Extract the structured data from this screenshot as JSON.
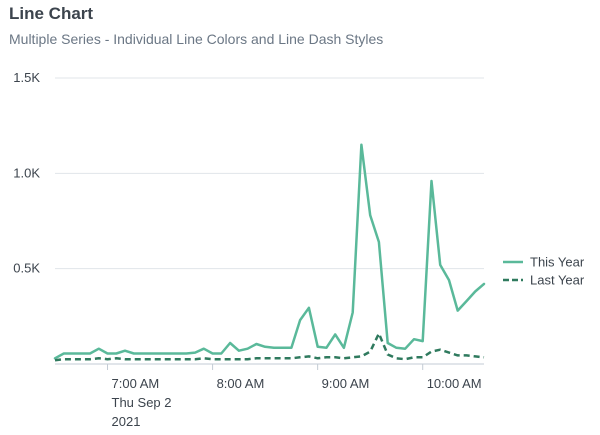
{
  "header": {
    "title": "Line Chart",
    "subtitle": "Multiple Series - Individual Line Colors and Line Dash Styles"
  },
  "chart_data": {
    "type": "line",
    "title": "Line Chart",
    "subtitle": "Multiple Series - Individual Line Colors and Line Dash Styles",
    "xlabel": "",
    "ylabel": "",
    "ylim": [
      0,
      1500
    ],
    "xlim": [
      "06:30",
      "10:35"
    ],
    "grid": {
      "y": true,
      "x": false
    },
    "legend_position": "right",
    "y_ticks": [
      {
        "value": 500,
        "label": "0.5K"
      },
      {
        "value": 1000,
        "label": "1.0K"
      },
      {
        "value": 1500,
        "label": "1.5K"
      }
    ],
    "x_ticks": [
      {
        "value": "07:00",
        "label": "7:00 AM",
        "sublabels": [
          "Thu Sep 2",
          "2021"
        ]
      },
      {
        "value": "08:00",
        "label": "8:00 AM",
        "sublabels": []
      },
      {
        "value": "09:00",
        "label": "9:00 AM",
        "sublabels": []
      },
      {
        "value": "10:00",
        "label": "10:00 AM",
        "sublabels": []
      }
    ],
    "x": [
      "06:30",
      "06:35",
      "06:40",
      "06:45",
      "06:50",
      "06:55",
      "07:00",
      "07:05",
      "07:10",
      "07:15",
      "07:20",
      "07:25",
      "07:30",
      "07:35",
      "07:40",
      "07:45",
      "07:50",
      "07:55",
      "08:00",
      "08:05",
      "08:10",
      "08:15",
      "08:20",
      "08:25",
      "08:30",
      "08:35",
      "08:40",
      "08:45",
      "08:50",
      "08:55",
      "09:00",
      "09:05",
      "09:10",
      "09:15",
      "09:20",
      "09:25",
      "09:30",
      "09:35",
      "09:40",
      "09:45",
      "09:50",
      "09:55",
      "10:00",
      "10:05",
      "10:10",
      "10:15",
      "10:20",
      "10:25",
      "10:30",
      "10:35"
    ],
    "series": [
      {
        "name": "This Year",
        "color": "#5ab99a",
        "dash": "solid",
        "values": [
          30,
          55,
          55,
          55,
          55,
          80,
          55,
          55,
          70,
          55,
          55,
          55,
          55,
          55,
          55,
          55,
          60,
          80,
          55,
          55,
          110,
          70,
          80,
          105,
          90,
          85,
          85,
          85,
          230,
          295,
          90,
          85,
          155,
          85,
          270,
          1150,
          780,
          640,
          110,
          85,
          80,
          130,
          120,
          960,
          520,
          440,
          280,
          330,
          380,
          420
        ]
      },
      {
        "name": "Last Year",
        "color": "#2f7a5e",
        "dash": "dashed",
        "values": [
          20,
          25,
          25,
          25,
          25,
          30,
          25,
          30,
          25,
          25,
          25,
          25,
          25,
          25,
          25,
          25,
          25,
          30,
          25,
          25,
          25,
          25,
          25,
          30,
          30,
          30,
          30,
          30,
          35,
          40,
          30,
          35,
          35,
          30,
          35,
          40,
          65,
          160,
          50,
          30,
          25,
          35,
          35,
          65,
          75,
          60,
          45,
          45,
          40,
          35
        ]
      }
    ]
  }
}
